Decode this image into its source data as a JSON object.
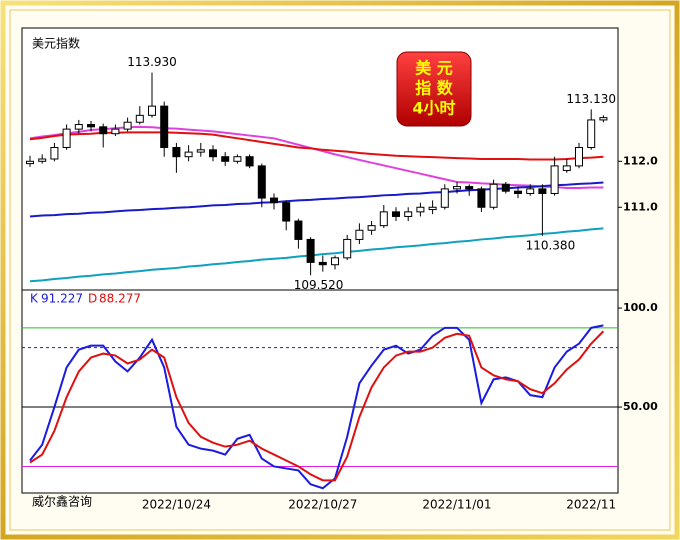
{
  "chart_data": [
    {
      "type": "candlestick",
      "title": "美元指数",
      "badge": [
        "美 元",
        "指 数",
        "4小时"
      ],
      "open": [
        111.95,
        112.0,
        112.05,
        112.3,
        112.7,
        112.8,
        112.75,
        112.6,
        112.7,
        112.85,
        113.0,
        113.2,
        112.3,
        112.1,
        112.2,
        112.25,
        112.1,
        112.0,
        112.1,
        111.9,
        111.2,
        111.1,
        110.7,
        110.3,
        109.8,
        109.75,
        109.9,
        110.3,
        110.5,
        110.6,
        110.9,
        110.8,
        110.9,
        110.95,
        111.0,
        111.4,
        111.45,
        111.4,
        111.0,
        111.5,
        111.35,
        111.3,
        111.4,
        111.3,
        111.8,
        111.9,
        112.3,
        112.9
      ],
      "high": [
        112.12,
        112.15,
        112.4,
        112.8,
        112.9,
        112.88,
        112.82,
        112.8,
        112.95,
        113.2,
        113.93,
        113.3,
        112.4,
        112.35,
        112.4,
        112.35,
        112.2,
        112.15,
        112.15,
        111.95,
        111.3,
        111.15,
        110.75,
        110.35,
        109.95,
        109.95,
        110.4,
        110.65,
        110.7,
        111.05,
        111.0,
        111.0,
        111.1,
        111.15,
        111.5,
        111.55,
        111.5,
        111.45,
        111.6,
        111.55,
        111.45,
        111.5,
        111.5,
        112.1,
        112.05,
        112.4,
        113.13,
        113.0
      ],
      "low": [
        111.88,
        111.95,
        112.0,
        112.25,
        112.6,
        112.65,
        112.3,
        112.55,
        112.65,
        112.8,
        112.95,
        112.1,
        111.75,
        112.0,
        112.1,
        112.0,
        111.9,
        111.95,
        111.85,
        111.0,
        110.95,
        110.5,
        110.1,
        109.52,
        109.6,
        109.65,
        109.85,
        110.2,
        110.4,
        110.55,
        110.7,
        110.7,
        110.8,
        110.85,
        110.95,
        111.3,
        111.25,
        110.9,
        110.95,
        111.3,
        111.2,
        111.25,
        110.38,
        111.25,
        111.75,
        111.85,
        112.25,
        112.85
      ],
      "close": [
        112.0,
        112.05,
        112.3,
        112.7,
        112.8,
        112.75,
        112.6,
        112.7,
        112.85,
        113.0,
        113.2,
        112.3,
        112.1,
        112.2,
        112.25,
        112.1,
        112.0,
        112.1,
        111.9,
        111.2,
        111.1,
        110.7,
        110.3,
        109.8,
        109.75,
        109.9,
        110.3,
        110.5,
        110.6,
        110.9,
        110.8,
        110.9,
        111.0,
        111.0,
        111.4,
        111.45,
        111.4,
        111.0,
        111.5,
        111.35,
        111.3,
        111.4,
        111.3,
        111.9,
        111.9,
        112.3,
        112.9,
        112.95
      ],
      "up_color": "#ffffff",
      "down_color": "#000000",
      "ma_lines": [
        {
          "color": "#e040e0",
          "values": [
            112.5,
            112.54,
            112.57,
            112.61,
            112.64,
            112.68,
            112.7,
            112.72,
            112.74,
            112.75,
            112.74,
            112.72,
            112.71,
            112.69,
            112.67,
            112.65,
            112.62,
            112.59,
            112.56,
            112.53,
            112.5,
            112.43,
            112.36,
            112.29,
            112.22,
            112.15,
            112.09,
            112.03,
            111.97,
            111.91,
            111.85,
            111.79,
            111.73,
            111.67,
            111.61,
            111.55,
            111.54,
            111.52,
            111.51,
            111.49,
            111.48,
            111.47,
            111.45,
            111.44,
            111.42,
            111.42,
            111.43,
            111.43
          ]
        },
        {
          "color": "#e01010",
          "values": [
            112.48,
            112.51,
            112.55,
            112.58,
            112.59,
            112.6,
            112.62,
            112.62,
            112.63,
            112.63,
            112.63,
            112.63,
            112.62,
            112.61,
            112.6,
            112.58,
            112.54,
            112.5,
            112.46,
            112.42,
            112.38,
            112.34,
            112.3,
            112.28,
            112.25,
            112.23,
            112.21,
            112.18,
            112.16,
            112.14,
            112.12,
            112.11,
            112.1,
            112.09,
            112.08,
            112.07,
            112.06,
            112.05,
            112.05,
            112.05,
            112.05,
            112.04,
            112.04,
            112.04,
            112.05,
            112.07,
            112.08,
            112.1
          ]
        },
        {
          "color": "#1a1ac8",
          "values": [
            110.8,
            110.82,
            110.83,
            110.85,
            110.86,
            110.88,
            110.89,
            110.91,
            110.93,
            110.94,
            110.96,
            110.97,
            110.99,
            111.0,
            111.02,
            111.04,
            111.05,
            111.07,
            111.08,
            111.1,
            111.11,
            111.13,
            111.15,
            111.16,
            111.18,
            111.19,
            111.21,
            111.22,
            111.24,
            111.26,
            111.27,
            111.29,
            111.3,
            111.32,
            111.33,
            111.35,
            111.37,
            111.38,
            111.4,
            111.41,
            111.43,
            111.44,
            111.46,
            111.48,
            111.49,
            111.51,
            111.52,
            111.54
          ]
        },
        {
          "color": "#10a0c0",
          "values": [
            109.39,
            109.41,
            109.44,
            109.46,
            109.49,
            109.51,
            109.54,
            109.56,
            109.59,
            109.61,
            109.64,
            109.66,
            109.68,
            109.71,
            109.73,
            109.76,
            109.78,
            109.81,
            109.83,
            109.86,
            109.88,
            109.9,
            109.93,
            109.95,
            109.98,
            110.0,
            110.03,
            110.05,
            110.08,
            110.1,
            110.13,
            110.15,
            110.17,
            110.2,
            110.22,
            110.25,
            110.27,
            110.3,
            110.32,
            110.35,
            110.37,
            110.39,
            110.42,
            110.44,
            110.47,
            110.49,
            110.52,
            110.54
          ]
        }
      ],
      "annotations": [
        {
          "value": 113.93,
          "label": "113.930"
        },
        {
          "value": 109.52,
          "label": "109.520"
        },
        {
          "value": 110.38,
          "label": "110.380"
        },
        {
          "value": 113.13,
          "label": "113.130"
        }
      ],
      "ylim": [
        109.2,
        114.9
      ],
      "yticks": [
        {
          "value": 112,
          "label": "112.0"
        },
        {
          "value": 111,
          "label": "111.0"
        }
      ]
    },
    {
      "type": "line",
      "source": "威尔鑫咨询",
      "categories": [
        null,
        null,
        null,
        null,
        null,
        null,
        null,
        null,
        null,
        null,
        null,
        null,
        "2022/10/24",
        null,
        null,
        null,
        null,
        null,
        null,
        null,
        null,
        null,
        null,
        null,
        "2022/10/27",
        null,
        null,
        null,
        null,
        null,
        null,
        null,
        null,
        null,
        null,
        "2022/11/01",
        null,
        null,
        null,
        null,
        null,
        null,
        null,
        null,
        null,
        null,
        "2022/11",
        null
      ],
      "series": [
        {
          "name": "K",
          "color": "#1a1ae0",
          "values": [
            23,
            31,
            50,
            70,
            79,
            81,
            81,
            73,
            68,
            75,
            84,
            70,
            40,
            31,
            29,
            28,
            26,
            34,
            36,
            24,
            20,
            19,
            18,
            11,
            9,
            14,
            35,
            62,
            71,
            79,
            81,
            77,
            79,
            86,
            90,
            90,
            84,
            52,
            64,
            65,
            63,
            56,
            55,
            70,
            78,
            82,
            90,
            91.227
          ]
        },
        {
          "name": "D",
          "color": "#e01010",
          "values": [
            22,
            26,
            38,
            55,
            68,
            75,
            77,
            76,
            72,
            74,
            79,
            75,
            55,
            42,
            35,
            32,
            30,
            31,
            33,
            29,
            26,
            23,
            20,
            16,
            13,
            13,
            25,
            45,
            60,
            70,
            76,
            78,
            78,
            80,
            85,
            87,
            86,
            70,
            66,
            64,
            63,
            59,
            57,
            62,
            69,
            74,
            82,
            88.277
          ]
        }
      ],
      "reference_lines": [
        {
          "value": 90,
          "color": "#20c020",
          "style": "solid"
        },
        {
          "value": 80,
          "color": "#1a1ae0",
          "style": "dotted"
        },
        {
          "value": 50,
          "color": "#000000",
          "style": "solid"
        },
        {
          "value": 20,
          "color": "#e020e0",
          "style": "solid"
        }
      ],
      "ylim": [
        6.6,
        108.1
      ],
      "yticks": [
        {
          "value": 100,
          "label": "100.0"
        },
        {
          "value": 50,
          "label": "50.00"
        }
      ]
    }
  ]
}
